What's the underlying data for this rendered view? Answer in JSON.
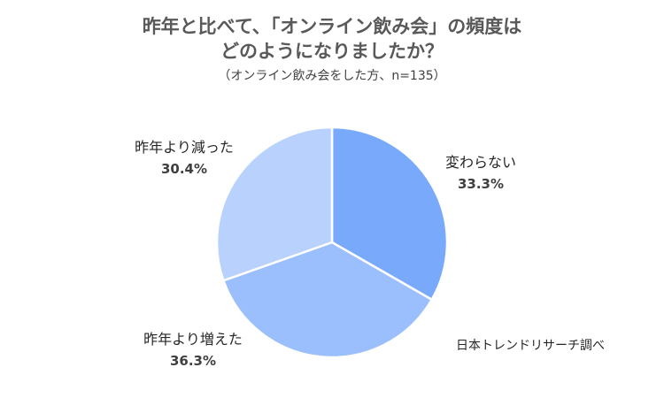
{
  "title": {
    "line1": "昨年と比べて、「オンライン飲み会」の頻度は",
    "line2": "どのようになりましたか？",
    "note": "（オンライン飲み会をした方、n=135）"
  },
  "source": "日本トレンドリサーチ調べ",
  "chart_data": {
    "type": "pie",
    "title": "昨年と比べて、「オンライン飲み会」の頻度はどのようになりましたか？",
    "categories": [
      "変わらない",
      "昨年より増えた",
      "昨年より減った"
    ],
    "values": [
      33.3,
      36.3,
      30.4
    ],
    "value_labels": [
      "33.3%",
      "36.3%",
      "30.4%"
    ],
    "colors": [
      "#79a9fb",
      "#9bbffd",
      "#b8d2fd"
    ],
    "start_angle_deg": 0,
    "direction": "clockwise",
    "legend": "none"
  }
}
